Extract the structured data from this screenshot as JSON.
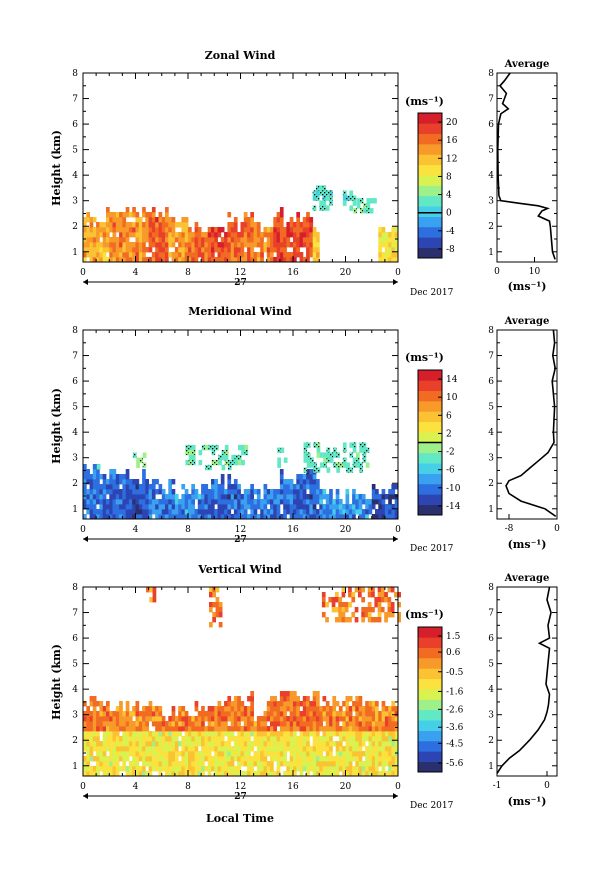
{
  "shared": {
    "xlabel": "Local Time",
    "x_ticks": [
      "0",
      "4",
      "8",
      "12",
      "16",
      "20",
      "0"
    ],
    "y_ticks": [
      "1",
      "2",
      "3",
      "4",
      "5",
      "6",
      "7",
      "8"
    ],
    "ylabel": "Height (km)",
    "day_label": "27",
    "date_label": "Dec 2017",
    "units": "(ms⁻¹)",
    "avg_title": "Average",
    "colormap": [
      "#2a2f6e",
      "#2c45b2",
      "#2d6fe0",
      "#3aa0f0",
      "#45d0e8",
      "#63e8c6",
      "#9ef08a",
      "#d9f250",
      "#fbe23e",
      "#fbc233",
      "#f89a2a",
      "#f26b22",
      "#e8402a",
      "#d71f2b"
    ]
  },
  "chart_data": [
    {
      "type": "heatmap",
      "title": "Zonal Wind",
      "xlabel": "",
      "ylabel": "Height (km)",
      "xlim": [
        0,
        24
      ],
      "ylim": [
        0.6,
        8
      ],
      "colorbar": {
        "ticks": [
          20,
          16,
          12,
          8,
          4,
          0,
          -4,
          -8
        ],
        "range": [
          -10,
          22
        ],
        "marked_value": 0
      },
      "x_regions": [
        {
          "x_start": 0,
          "x_end": 2,
          "top_km": 2.6,
          "value": 13
        },
        {
          "x_start": 2,
          "x_end": 5,
          "top_km": 2.8,
          "value": 15
        },
        {
          "x_start": 5,
          "x_end": 6.5,
          "top_km": 2.65,
          "value": 17
        },
        {
          "x_start": 6.5,
          "x_end": 8,
          "top_km": 2.3,
          "value": 14
        },
        {
          "x_start": 8,
          "x_end": 9.5,
          "top_km": 2.0,
          "value": 16
        },
        {
          "x_start": 9.5,
          "x_end": 11,
          "top_km": 2.0,
          "value": 18
        },
        {
          "x_start": 11,
          "x_end": 13,
          "top_km": 2.4,
          "value": 16
        },
        {
          "x_start": 13,
          "x_end": 14.5,
          "top_km": 2.1,
          "value": 15
        },
        {
          "x_start": 14.5,
          "x_end": 17.5,
          "top_km": 2.5,
          "value": 18
        },
        {
          "x_start": 17.5,
          "x_end": 18,
          "top_km": 2.2,
          "value": 12
        },
        {
          "x_start": 22.5,
          "x_end": 24,
          "top_km": 2.0,
          "value": 10
        }
      ],
      "clusters": [
        {
          "x_start": 17.5,
          "x_end": 18.8,
          "bottom_km": 2.7,
          "top_km": 3.6,
          "value": 2
        },
        {
          "x_start": 19.8,
          "x_end": 20.6,
          "bottom_km": 2.8,
          "top_km": 3.4,
          "value": 2
        },
        {
          "x_start": 20.6,
          "x_end": 22.2,
          "bottom_km": 2.7,
          "top_km": 3.1,
          "value": 3
        },
        {
          "x_start": 10.1,
          "x_end": 10.5,
          "bottom_km": 2.9,
          "top_km": 3.4,
          "value": 2
        }
      ],
      "average_profile": {
        "xlim": [
          0,
          16
        ],
        "x_ticks": [
          "0",
          "10"
        ],
        "xlabel": "(ms⁻¹)",
        "height_km": [
          0.7,
          1.0,
          1.5,
          2.0,
          2.2,
          2.4,
          2.6,
          2.7,
          2.8,
          2.9,
          3.0,
          3.2,
          4.0,
          5.0,
          6.0,
          6.4,
          6.6,
          6.8,
          7.2,
          7.5,
          7.7,
          8.0
        ],
        "value": [
          15.5,
          14.8,
          14.5,
          14.2,
          14.0,
          11.0,
          12.0,
          13.5,
          11.0,
          6.0,
          1.0,
          0.5,
          0.3,
          0.2,
          0.4,
          1.0,
          3.0,
          1.5,
          2.5,
          0.8,
          2.0,
          3.5
        ]
      }
    },
    {
      "type": "heatmap",
      "title": "Meridional Wind",
      "xlabel": "",
      "ylabel": "Height (km)",
      "xlim": [
        0,
        24
      ],
      "ylim": [
        0.6,
        8
      ],
      "colorbar": {
        "ticks": [
          14,
          10,
          6,
          2,
          -2,
          -6,
          -10,
          -14
        ],
        "range": [
          -16,
          16
        ],
        "marked_value": 0
      },
      "x_regions": [
        {
          "x_start": 0,
          "x_end": 1.5,
          "top_km": 2.6,
          "value": -10
        },
        {
          "x_start": 1.5,
          "x_end": 3.5,
          "top_km": 2.5,
          "value": -11
        },
        {
          "x_start": 3.5,
          "x_end": 5,
          "top_km": 2.3,
          "value": -12
        },
        {
          "x_start": 5,
          "x_end": 7,
          "top_km": 2.1,
          "value": -10
        },
        {
          "x_start": 7,
          "x_end": 9,
          "top_km": 1.8,
          "value": -9
        },
        {
          "x_start": 9,
          "x_end": 12,
          "top_km": 2.2,
          "value": -11
        },
        {
          "x_start": 12,
          "x_end": 15,
          "top_km": 1.9,
          "value": -10
        },
        {
          "x_start": 15,
          "x_end": 18,
          "top_km": 2.4,
          "value": -11
        },
        {
          "x_start": 18,
          "x_end": 22,
          "top_km": 1.6,
          "value": -9
        },
        {
          "x_start": 22,
          "x_end": 24,
          "top_km": 1.8,
          "value": -12
        }
      ],
      "clusters": [
        {
          "x_start": 7.8,
          "x_end": 12.5,
          "bottom_km": 2.6,
          "top_km": 3.5,
          "value": -3
        },
        {
          "x_start": 14.8,
          "x_end": 15.4,
          "bottom_km": 2.8,
          "top_km": 3.4,
          "value": -3
        },
        {
          "x_start": 16.8,
          "x_end": 21.8,
          "bottom_km": 2.6,
          "top_km": 3.6,
          "value": -3
        },
        {
          "x_start": 3.8,
          "x_end": 5.0,
          "bottom_km": 2.7,
          "top_km": 3.2,
          "value": -3
        },
        {
          "x_start": 0.8,
          "x_end": 2.0,
          "bottom_km": 2.6,
          "top_km": 2.75,
          "value": -4
        }
      ],
      "average_profile": {
        "xlim": [
          -10,
          0
        ],
        "x_ticks": [
          "-8",
          "0"
        ],
        "xlabel": "(ms⁻¹)",
        "height_km": [
          0.7,
          1.0,
          1.3,
          1.6,
          1.9,
          2.1,
          2.3,
          2.6,
          2.9,
          3.2,
          3.6,
          4.0,
          5.0,
          6.0,
          6.5,
          7.0,
          7.5,
          8.0
        ],
        "value": [
          -0.2,
          -2.0,
          -6.0,
          -8.0,
          -8.5,
          -8.0,
          -6.0,
          -4.5,
          -3.0,
          -1.5,
          -0.5,
          -0.6,
          -0.4,
          -0.8,
          -0.3,
          -0.7,
          -0.4,
          -0.6
        ]
      }
    },
    {
      "type": "heatmap",
      "title": "Vertical Wind",
      "xlabel": "Local Time",
      "ylabel": "Height (km)",
      "xlim": [
        0,
        24
      ],
      "ylim": [
        0.6,
        8
      ],
      "colorbar": {
        "ticks": [
          1.5,
          0.6,
          -0.5,
          -1.6,
          -2.6,
          -3.6,
          -4.5,
          -5.6
        ],
        "range": [
          -6.1,
          2.0
        ],
        "marked_value": null
      },
      "x_regions": [
        {
          "x_start": 0,
          "x_end": 2,
          "top_km": 3.6,
          "value": 0.3
        },
        {
          "x_start": 2,
          "x_end": 6,
          "top_km": 3.5,
          "value": 0.2
        },
        {
          "x_start": 6,
          "x_end": 10,
          "top_km": 3.3,
          "value": 0.3
        },
        {
          "x_start": 10,
          "x_end": 13,
          "top_km": 3.7,
          "value": 0.4
        },
        {
          "x_start": 13,
          "x_end": 14,
          "top_km": 3.0,
          "value": 0.2
        },
        {
          "x_start": 14,
          "x_end": 18,
          "top_km": 3.8,
          "value": 0.4
        },
        {
          "x_start": 18,
          "x_end": 22,
          "top_km": 3.7,
          "value": 0.3
        },
        {
          "x_start": 22,
          "x_end": 24,
          "top_km": 3.4,
          "value": 0.2
        }
      ],
      "lower_layer": {
        "top_km": 2.5,
        "value": -1.3
      },
      "clusters": [
        {
          "x_start": 9.6,
          "x_end": 10.4,
          "bottom_km": 6.6,
          "top_km": 8.0,
          "value": 0.4
        },
        {
          "x_start": 18.2,
          "x_end": 24.0,
          "bottom_km": 6.8,
          "top_km": 8.0,
          "value": 0.4
        },
        {
          "x_start": 4.8,
          "x_end": 5.4,
          "bottom_km": 7.6,
          "top_km": 8.0,
          "value": 0.4
        }
      ],
      "average_profile": {
        "xlim": [
          -1,
          0.2
        ],
        "x_ticks": [
          "-1",
          "0"
        ],
        "xlabel": "(ms⁻¹)",
        "height_km": [
          0.7,
          1.0,
          1.3,
          1.6,
          2.0,
          2.4,
          2.8,
          3.1,
          3.4,
          3.8,
          4.2,
          5.0,
          5.6,
          5.8,
          6.0,
          6.5,
          7.0,
          7.5,
          8.0
        ],
        "value": [
          -1.0,
          -0.9,
          -0.75,
          -0.55,
          -0.35,
          -0.18,
          -0.05,
          0.0,
          0.03,
          0.05,
          -0.02,
          0.02,
          0.05,
          -0.15,
          0.05,
          0.02,
          0.08,
          0.0,
          0.05
        ]
      }
    }
  ]
}
